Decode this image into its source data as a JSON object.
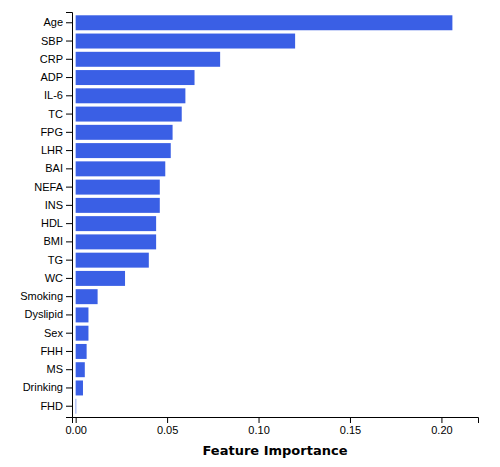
{
  "chart_data": {
    "type": "bar",
    "orientation": "horizontal",
    "categories": [
      "Age",
      "SBP",
      "CRP",
      "ADP",
      "IL-6",
      "TC",
      "FPG",
      "LHR",
      "BAI",
      "NEFA",
      "INS",
      "HDL",
      "BMI",
      "TG",
      "WC",
      "Smoking",
      "Dyslipid",
      "Sex",
      "FHH",
      "MS",
      "Drinking",
      "FHD"
    ],
    "values": [
      0.206,
      0.12,
      0.079,
      0.065,
      0.06,
      0.058,
      0.053,
      0.052,
      0.049,
      0.046,
      0.046,
      0.044,
      0.044,
      0.04,
      0.027,
      0.012,
      0.007,
      0.007,
      0.006,
      0.005,
      0.004,
      0.0003
    ],
    "color": "#3a5fe5",
    "xlabel": "Feature Importance",
    "xlim": [
      -0.002,
      0.22
    ],
    "xticks": [
      {
        "value": 0,
        "label": "0.00"
      },
      0.05,
      {
        "value": 0.1,
        "label": "0.10"
      },
      0.15,
      {
        "value": 0.2,
        "label": "0.20"
      }
    ],
    "grid": false
  }
}
